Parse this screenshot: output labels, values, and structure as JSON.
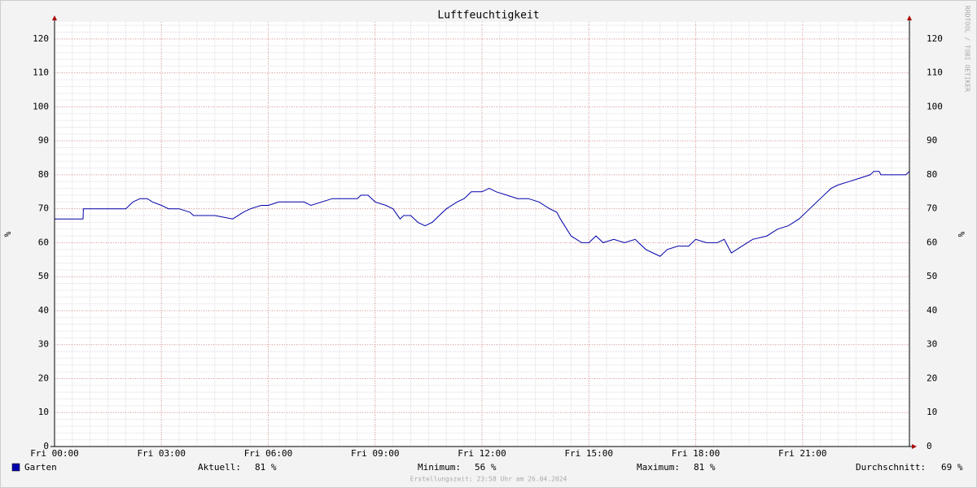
{
  "chart_data": {
    "type": "line",
    "title": "Luftfeuchtigkeit",
    "y_label": "%",
    "watermark": "RRDTOOL / TOBI OETIKER",
    "footer": "Erstellungszeit: 23:58 Uhr am 26.04.2024",
    "xlim": [
      0,
      24
    ],
    "xticks": [
      {
        "value": 0,
        "label": "Fri 00:00"
      },
      {
        "value": 3,
        "label": "Fri 03:00"
      },
      {
        "value": 6,
        "label": "Fri 06:00"
      },
      {
        "value": 9,
        "label": "Fri 09:00"
      },
      {
        "value": 12,
        "label": "Fri 12:00"
      },
      {
        "value": 15,
        "label": "Fri 15:00"
      },
      {
        "value": 18,
        "label": "Fri 18:00"
      },
      {
        "value": 21,
        "label": "Fri 21:00"
      }
    ],
    "ylim": [
      0,
      125
    ],
    "yticks": [
      0,
      10,
      20,
      30,
      40,
      50,
      60,
      70,
      80,
      90,
      100,
      110,
      120
    ],
    "grid": true,
    "x": [
      0,
      0.8,
      0.81,
      2.0,
      2.2,
      2.4,
      2.6,
      2.75,
      3.0,
      3.2,
      3.5,
      3.8,
      3.9,
      4.5,
      5.0,
      5.3,
      5.5,
      5.8,
      6.0,
      6.3,
      7.0,
      7.2,
      7.5,
      7.8,
      8.5,
      8.6,
      8.8,
      9.0,
      9.3,
      9.5,
      9.7,
      9.8,
      10.0,
      10.2,
      10.4,
      10.6,
      10.8,
      11.0,
      11.3,
      11.5,
      11.7,
      12.0,
      12.2,
      12.4,
      12.7,
      13.0,
      13.3,
      13.6,
      13.9,
      14.1,
      14.2,
      14.5,
      14.8,
      15.0,
      15.2,
      15.4,
      15.7,
      16.0,
      16.3,
      16.6,
      16.8,
      17.0,
      17.2,
      17.5,
      17.8,
      18.0,
      18.3,
      18.6,
      18.8,
      19.0,
      19.3,
      19.6,
      20.0,
      20.3,
      20.6,
      20.9,
      21.2,
      21.5,
      21.8,
      22.0,
      22.3,
      22.6,
      22.9,
      23.0,
      23.15,
      23.2,
      23.9,
      24.0
    ],
    "series": [
      {
        "name": "Garten",
        "color": "#0000aa",
        "values": [
          67,
          67,
          70,
          70,
          72,
          73,
          73,
          72,
          71,
          70,
          70,
          69,
          68,
          68,
          67,
          69,
          70,
          71,
          71,
          72,
          72,
          71,
          72,
          73,
          73,
          74,
          74,
          72,
          71,
          70,
          67,
          68,
          68,
          66,
          65,
          66,
          68,
          70,
          72,
          73,
          75,
          75,
          76,
          75,
          74,
          73,
          73,
          72,
          70,
          69,
          67,
          62,
          60,
          60,
          62,
          60,
          61,
          60,
          61,
          58,
          57,
          56,
          58,
          59,
          59,
          61,
          60,
          60,
          61,
          57,
          59,
          61,
          62,
          64,
          65,
          67,
          70,
          73,
          76,
          77,
          78,
          79,
          80,
          81,
          81,
          80,
          80,
          81
        ]
      }
    ],
    "stats": [
      {
        "label": "Aktuell:",
        "value": 81,
        "value_label": "81 %"
      },
      {
        "label": "Minimum:",
        "value": 56,
        "value_label": "56 %"
      },
      {
        "label": "Maximum:",
        "value": 81,
        "value_label": "81 %"
      },
      {
        "label": "Durchschnitt:",
        "value": 69,
        "value_label": "69 %"
      }
    ]
  }
}
